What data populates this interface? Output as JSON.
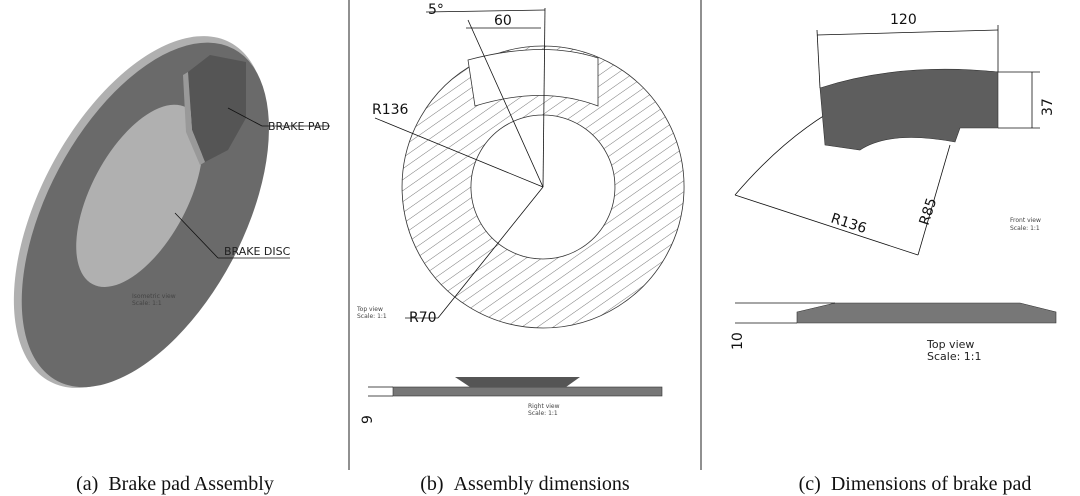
{
  "panels": [
    {
      "label": "(a)",
      "caption": "Brake pad Assembly",
      "parts": [
        "BRAKE PAD",
        "BRAKE DISC"
      ],
      "view": "Isometric view",
      "scale": "Scale: 1:1"
    },
    {
      "label": "(b)",
      "caption": "Assembly dimensions",
      "dims": [
        "5°",
        "60",
        "R136",
        "R70",
        "9"
      ],
      "views": [
        {
          "name": "Top view",
          "scale": "Scale: 1:1"
        },
        {
          "name": "Right view",
          "scale": "Scale: 1:1"
        }
      ]
    },
    {
      "label": "(c)",
      "caption": "Dimensions of brake pad",
      "dims": [
        "120",
        "37",
        "R136",
        "R85",
        "10"
      ],
      "views": [
        {
          "name": "Front view",
          "scale": "Scale: 1:1"
        },
        {
          "name": "Top view",
          "scale": "Scale: 1:1"
        }
      ]
    }
  ]
}
